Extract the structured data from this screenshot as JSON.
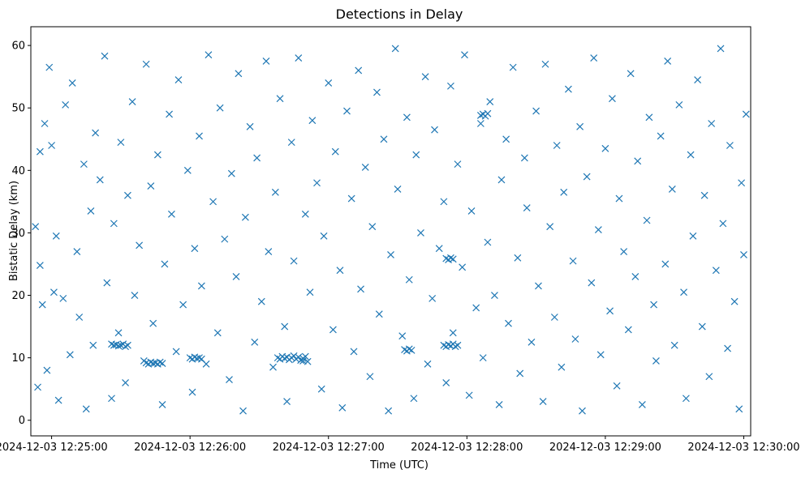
{
  "chart_data": {
    "type": "scatter",
    "title": "Detections in Delay",
    "xlabel": "Time (UTC)",
    "ylabel": "Bistatic Delay (km)",
    "marker": "x",
    "marker_color": "#1f77b4",
    "x_axis_type": "time",
    "xlim": [
      "2024-12-03 12:24:51",
      "2024-12-03 12:30:03"
    ],
    "ylim": [
      -2.5,
      63
    ],
    "x_ticks": [
      "2024-12-03 12:25:00",
      "2024-12-03 12:26:00",
      "2024-12-03 12:27:00",
      "2024-12-03 12:28:00",
      "2024-12-03 12:29:00",
      "2024-12-03 12:30:00"
    ],
    "y_ticks": [
      0,
      10,
      20,
      30,
      40,
      50,
      60
    ],
    "grid": false,
    "legend": "none",
    "series": [
      {
        "x": [
          "2024-12-03 12:24:53",
          "2024-12-03 12:24:54",
          "2024-12-03 12:24:55",
          "2024-12-03 12:24:55",
          "2024-12-03 12:24:56",
          "2024-12-03 12:24:57",
          "2024-12-03 12:24:58",
          "2024-12-03 12:24:59",
          "2024-12-03 12:25:00",
          "2024-12-03 12:25:01",
          "2024-12-03 12:25:02",
          "2024-12-03 12:25:03",
          "2024-12-03 12:25:05",
          "2024-12-03 12:25:06",
          "2024-12-03 12:25:08",
          "2024-12-03 12:25:09",
          "2024-12-03 12:25:11",
          "2024-12-03 12:25:12",
          "2024-12-03 12:25:14",
          "2024-12-03 12:25:15",
          "2024-12-03 12:25:17",
          "2024-12-03 12:25:18",
          "2024-12-03 12:25:19",
          "2024-12-03 12:25:21",
          "2024-12-03 12:25:23",
          "2024-12-03 12:25:24",
          "2024-12-03 12:25:26",
          "2024-12-03 12:25:27",
          "2024-12-03 12:25:29",
          "2024-12-03 12:25:30",
          "2024-12-03 12:25:32",
          "2024-12-03 12:25:33",
          "2024-12-03 12:25:35",
          "2024-12-03 12:25:36",
          "2024-12-03 12:25:38",
          "2024-12-03 12:25:40",
          "2024-12-03 12:25:41",
          "2024-12-03 12:25:43",
          "2024-12-03 12:25:44",
          "2024-12-03 12:25:46",
          "2024-12-03 12:25:48",
          "2024-12-03 12:25:49",
          "2024-12-03 12:25:51",
          "2024-12-03 12:25:52",
          "2024-12-03 12:25:54",
          "2024-12-03 12:25:55",
          "2024-12-03 12:25:57",
          "2024-12-03 12:25:59",
          "2024-12-03 12:26:01",
          "2024-12-03 12:26:02",
          "2024-12-03 12:26:04",
          "2024-12-03 12:26:05",
          "2024-12-03 12:26:07",
          "2024-12-03 12:26:08",
          "2024-12-03 12:26:10",
          "2024-12-03 12:26:12",
          "2024-12-03 12:26:13",
          "2024-12-03 12:26:15",
          "2024-12-03 12:26:17",
          "2024-12-03 12:26:18",
          "2024-12-03 12:26:20",
          "2024-12-03 12:26:21",
          "2024-12-03 12:26:23",
          "2024-12-03 12:26:24",
          "2024-12-03 12:26:26",
          "2024-12-03 12:26:28",
          "2024-12-03 12:26:29",
          "2024-12-03 12:26:31",
          "2024-12-03 12:26:33",
          "2024-12-03 12:26:34",
          "2024-12-03 12:26:36",
          "2024-12-03 12:26:37",
          "2024-12-03 12:26:39",
          "2024-12-03 12:26:41",
          "2024-12-03 12:26:42",
          "2024-12-03 12:26:44",
          "2024-12-03 12:26:45",
          "2024-12-03 12:26:47",
          "2024-12-03 12:26:49",
          "2024-12-03 12:26:50",
          "2024-12-03 12:26:52",
          "2024-12-03 12:26:53",
          "2024-12-03 12:26:55",
          "2024-12-03 12:26:57",
          "2024-12-03 12:26:58",
          "2024-12-03 12:27:00",
          "2024-12-03 12:27:02",
          "2024-12-03 12:27:03",
          "2024-12-03 12:27:05",
          "2024-12-03 12:27:06",
          "2024-12-03 12:27:08",
          "2024-12-03 12:27:10",
          "2024-12-03 12:27:11",
          "2024-12-03 12:27:13",
          "2024-12-03 12:27:14",
          "2024-12-03 12:27:16",
          "2024-12-03 12:27:18",
          "2024-12-03 12:27:19",
          "2024-12-03 12:27:21",
          "2024-12-03 12:27:22",
          "2024-12-03 12:27:24",
          "2024-12-03 12:27:26",
          "2024-12-03 12:27:27",
          "2024-12-03 12:27:29",
          "2024-12-03 12:27:30",
          "2024-12-03 12:27:32",
          "2024-12-03 12:27:34",
          "2024-12-03 12:27:35",
          "2024-12-03 12:27:37",
          "2024-12-03 12:27:38",
          "2024-12-03 12:27:40",
          "2024-12-03 12:27:42",
          "2024-12-03 12:27:43",
          "2024-12-03 12:27:45",
          "2024-12-03 12:27:46",
          "2024-12-03 12:27:48",
          "2024-12-03 12:27:50",
          "2024-12-03 12:27:51",
          "2024-12-03 12:27:53",
          "2024-12-03 12:27:54",
          "2024-12-03 12:27:56",
          "2024-12-03 12:27:58",
          "2024-12-03 12:27:59",
          "2024-12-03 12:28:01",
          "2024-12-03 12:28:02",
          "2024-12-03 12:28:04",
          "2024-12-03 12:28:06",
          "2024-12-03 12:28:07",
          "2024-12-03 12:28:09",
          "2024-12-03 12:28:10",
          "2024-12-03 12:28:12",
          "2024-12-03 12:28:14",
          "2024-12-03 12:28:15",
          "2024-12-03 12:28:17",
          "2024-12-03 12:28:18",
          "2024-12-03 12:28:20",
          "2024-12-03 12:28:22",
          "2024-12-03 12:28:23",
          "2024-12-03 12:28:25",
          "2024-12-03 12:28:26",
          "2024-12-03 12:28:28",
          "2024-12-03 12:28:30",
          "2024-12-03 12:28:31",
          "2024-12-03 12:28:33",
          "2024-12-03 12:28:34",
          "2024-12-03 12:28:36",
          "2024-12-03 12:28:38",
          "2024-12-03 12:28:39",
          "2024-12-03 12:28:41",
          "2024-12-03 12:28:42",
          "2024-12-03 12:28:44",
          "2024-12-03 12:28:46",
          "2024-12-03 12:28:47",
          "2024-12-03 12:28:49",
          "2024-12-03 12:28:50",
          "2024-12-03 12:28:52",
          "2024-12-03 12:28:54",
          "2024-12-03 12:28:55",
          "2024-12-03 12:28:57",
          "2024-12-03 12:28:58",
          "2024-12-03 12:29:00",
          "2024-12-03 12:29:02",
          "2024-12-03 12:29:03",
          "2024-12-03 12:29:05",
          "2024-12-03 12:29:06",
          "2024-12-03 12:29:08",
          "2024-12-03 12:29:10",
          "2024-12-03 12:29:11",
          "2024-12-03 12:29:13",
          "2024-12-03 12:29:14",
          "2024-12-03 12:29:16",
          "2024-12-03 12:29:18",
          "2024-12-03 12:29:19",
          "2024-12-03 12:29:21",
          "2024-12-03 12:29:22",
          "2024-12-03 12:29:24",
          "2024-12-03 12:29:26",
          "2024-12-03 12:29:27",
          "2024-12-03 12:29:29",
          "2024-12-03 12:29:30",
          "2024-12-03 12:29:32",
          "2024-12-03 12:29:34",
          "2024-12-03 12:29:35",
          "2024-12-03 12:29:37",
          "2024-12-03 12:29:38",
          "2024-12-03 12:29:40",
          "2024-12-03 12:29:42",
          "2024-12-03 12:29:43",
          "2024-12-03 12:29:45",
          "2024-12-03 12:29:46",
          "2024-12-03 12:29:48",
          "2024-12-03 12:29:50",
          "2024-12-03 12:29:51",
          "2024-12-03 12:29:53",
          "2024-12-03 12:29:54",
          "2024-12-03 12:29:56",
          "2024-12-03 12:29:58",
          "2024-12-03 12:29:59",
          "2024-12-03 12:30:00",
          "2024-12-03 12:30:01",
          "2024-12-03 12:25:26",
          "2024-12-03 12:25:27",
          "2024-12-03 12:25:28",
          "2024-12-03 12:25:29",
          "2024-12-03 12:25:30",
          "2024-12-03 12:25:31",
          "2024-12-03 12:25:32",
          "2024-12-03 12:25:33",
          "2024-12-03 12:25:41",
          "2024-12-03 12:25:42",
          "2024-12-03 12:25:43",
          "2024-12-03 12:25:44",
          "2024-12-03 12:25:45",
          "2024-12-03 12:25:46",
          "2024-12-03 12:25:47",
          "2024-12-03 12:25:48",
          "2024-12-03 12:26:00",
          "2024-12-03 12:26:01",
          "2024-12-03 12:26:02",
          "2024-12-03 12:26:03",
          "2024-12-03 12:26:04",
          "2024-12-03 12:26:05",
          "2024-12-03 12:26:38",
          "2024-12-03 12:26:39",
          "2024-12-03 12:26:40",
          "2024-12-03 12:26:41",
          "2024-12-03 12:26:42",
          "2024-12-03 12:26:43",
          "2024-12-03 12:26:44",
          "2024-12-03 12:26:45",
          "2024-12-03 12:26:46",
          "2024-12-03 12:26:47",
          "2024-12-03 12:26:48",
          "2024-12-03 12:26:49",
          "2024-12-03 12:26:50",
          "2024-12-03 12:26:51",
          "2024-12-03 12:27:33",
          "2024-12-03 12:27:34",
          "2024-12-03 12:27:35",
          "2024-12-03 12:27:36",
          "2024-12-03 12:27:50",
          "2024-12-03 12:27:51",
          "2024-12-03 12:27:52",
          "2024-12-03 12:27:53",
          "2024-12-03 12:27:54",
          "2024-12-03 12:27:55",
          "2024-12-03 12:27:56",
          "2024-12-03 12:28:06",
          "2024-12-03 12:28:07",
          "2024-12-03 12:28:08",
          "2024-12-03 12:28:09",
          "2024-12-03 12:27:51",
          "2024-12-03 12:27:52",
          "2024-12-03 12:27:53",
          "2024-12-03 12:27:54"
        ],
        "y": [
          31.0,
          5.3,
          43.0,
          24.8,
          18.5,
          47.5,
          8.0,
          56.5,
          44.0,
          20.5,
          29.5,
          3.2,
          19.5,
          50.5,
          10.5,
          54.0,
          27.0,
          16.5,
          41.0,
          1.8,
          33.5,
          12.0,
          46.0,
          38.5,
          58.3,
          22.0,
          3.5,
          31.5,
          14.0,
          44.5,
          6.0,
          36.0,
          51.0,
          20.0,
          28.0,
          9.5,
          57.0,
          37.5,
          15.5,
          42.5,
          2.5,
          25.0,
          49.0,
          33.0,
          11.0,
          54.5,
          18.5,
          40.0,
          4.5,
          27.5,
          45.5,
          21.5,
          9.0,
          58.5,
          35.0,
          14.0,
          50.0,
          29.0,
          6.5,
          39.5,
          23.0,
          55.5,
          1.5,
          32.5,
          47.0,
          12.5,
          42.0,
          19.0,
          57.5,
          27.0,
          8.5,
          36.5,
          51.5,
          15.0,
          3.0,
          44.5,
          25.5,
          58.0,
          9.5,
          33.0,
          20.5,
          48.0,
          38.0,
          5.0,
          29.5,
          54.0,
          14.5,
          43.0,
          24.0,
          2.0,
          49.5,
          35.5,
          11.0,
          56.0,
          21.0,
          40.5,
          7.0,
          31.0,
          52.5,
          17.0,
          45.0,
          1.5,
          26.5,
          59.5,
          37.0,
          13.5,
          48.5,
          22.5,
          3.5,
          42.5,
          30.0,
          55.0,
          9.0,
          19.5,
          46.5,
          27.5,
          35.0,
          6.0,
          53.5,
          14.0,
          41.0,
          24.5,
          58.5,
          4.0,
          33.5,
          18.0,
          47.5,
          10.0,
          28.5,
          51.0,
          20.0,
          2.5,
          38.5,
          45.0,
          15.5,
          56.5,
          26.0,
          7.5,
          42.0,
          34.0,
          12.5,
          49.5,
          21.5,
          3.0,
          57.0,
          31.0,
          16.5,
          44.0,
          8.5,
          36.5,
          53.0,
          25.5,
          13.0,
          47.0,
          1.5,
          39.0,
          22.0,
          58.0,
          30.5,
          10.5,
          43.5,
          17.5,
          51.5,
          5.5,
          35.5,
          27.0,
          14.5,
          55.5,
          23.0,
          41.5,
          2.5,
          32.0,
          48.5,
          18.5,
          9.5,
          45.5,
          25.0,
          57.5,
          37.0,
          12.0,
          50.5,
          20.5,
          3.5,
          42.5,
          29.5,
          54.5,
          15.0,
          36.0,
          7.0,
          47.5,
          24.0,
          59.5,
          31.5,
          11.5,
          44.0,
          19.0,
          1.8,
          38.0,
          26.5,
          49.0,
          12.2,
          12.0,
          12.1,
          11.9,
          12.0,
          12.2,
          11.8,
          12.0,
          9.2,
          9.0,
          9.3,
          9.1,
          9.2,
          9.0,
          9.3,
          9.1,
          10.0,
          9.8,
          10.1,
          9.9,
          10.0,
          9.8,
          10.0,
          9.8,
          10.2,
          9.9,
          10.1,
          9.7,
          10.0,
          10.3,
          9.8,
          10.1,
          9.6,
          9.9,
          10.2,
          9.4,
          11.3,
          11.1,
          11.4,
          11.2,
          12.0,
          11.8,
          12.1,
          11.9,
          12.2,
          11.8,
          12.0,
          48.8,
          49.0,
          48.7,
          49.1,
          25.9,
          25.7,
          26.0,
          25.8
        ]
      }
    ]
  }
}
